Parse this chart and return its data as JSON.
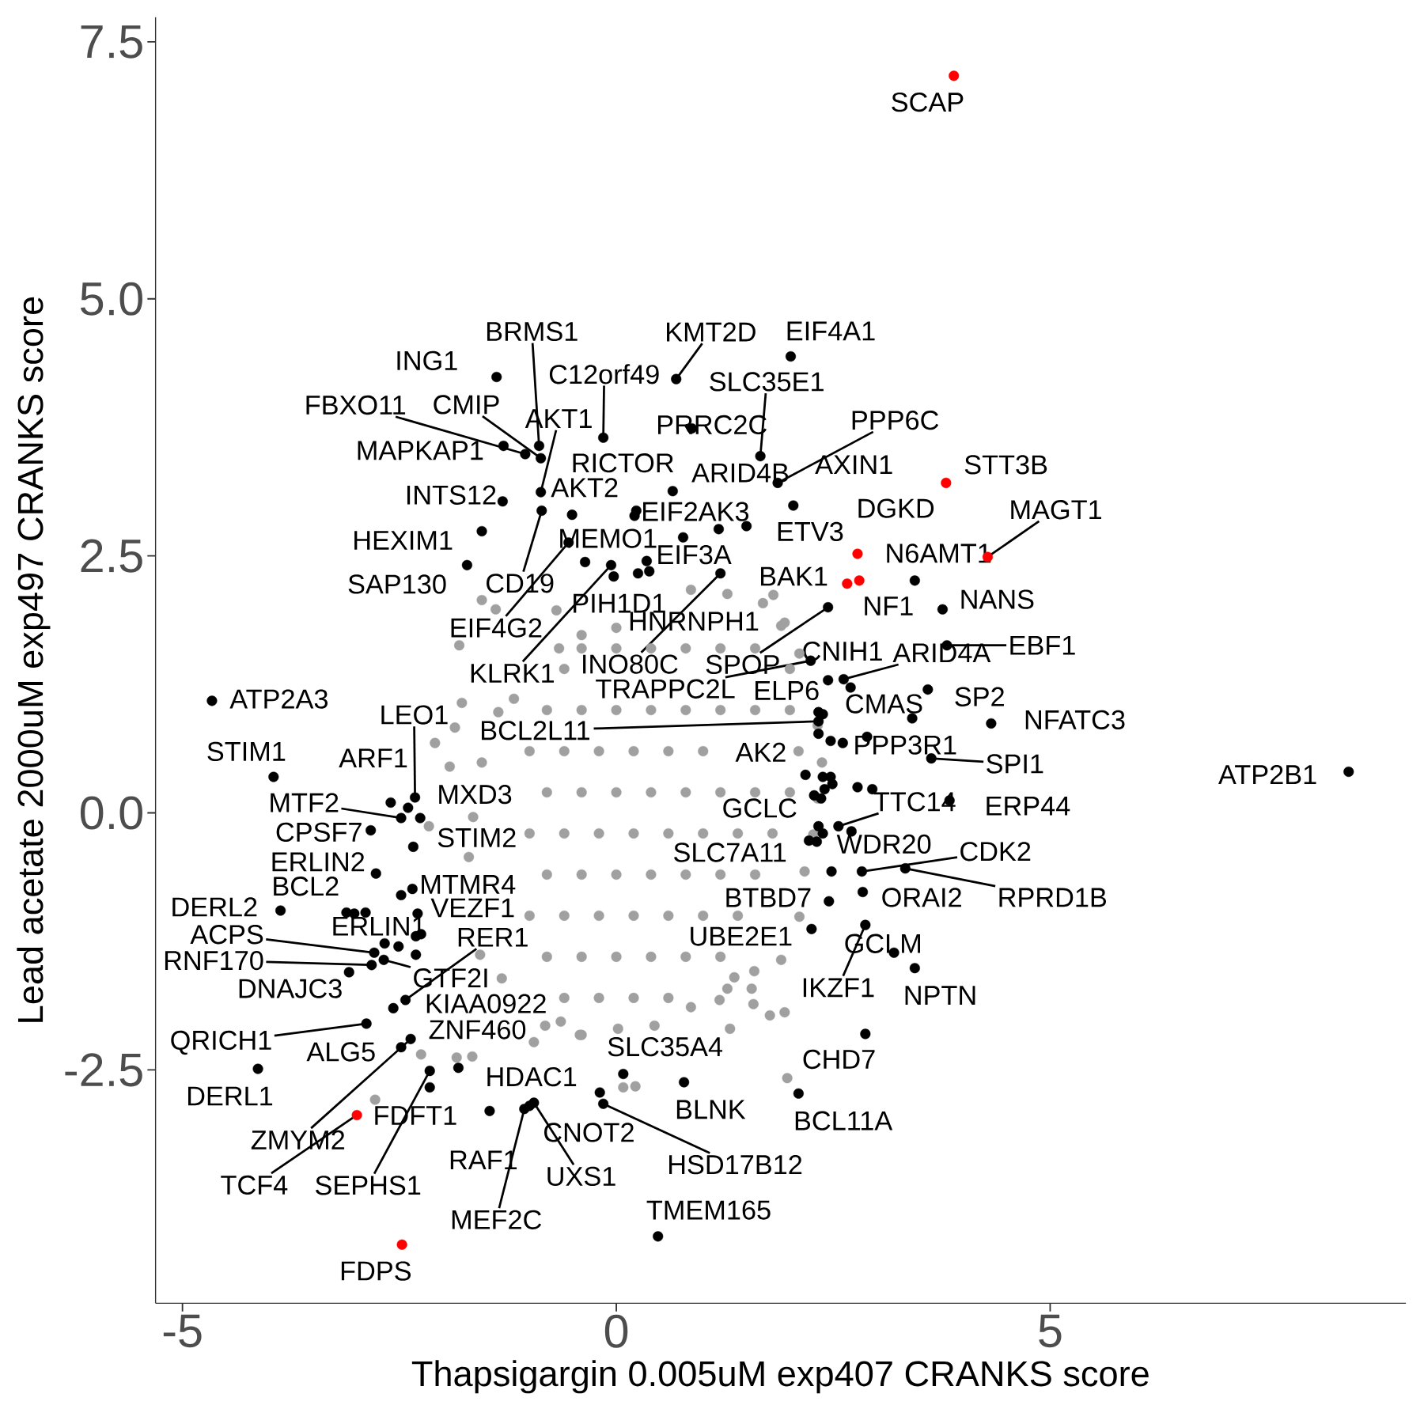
{
  "chart_data": {
    "type": "scatter",
    "xlabel": "Thapsigargin 0.005uM exp407 CRANKS score",
    "ylabel": "Lead acetate 2000uM exp497 CRANKS score",
    "xlim": [
      -5.31,
      9.1
    ],
    "ylim": [
      -4.77,
      7.74
    ],
    "xticks": [
      -5,
      0,
      5
    ],
    "yticks": [
      -2.5,
      {
        "value": 0,
        "label": "0.0"
      },
      2.5,
      {
        "value": 5,
        "label": "5.0"
      },
      7.5
    ],
    "marker": "circle",
    "series": [
      {
        "color": "#a0a0a0",
        "x": [
          -0.4,
          0.86,
          1.28,
          1.69,
          1.9,
          2.11,
          2.32,
          2.37,
          2.32,
          2.27,
          2.17,
          2.11,
          1.9,
          1.59,
          1.28,
          0.86,
          0.44,
          0.02,
          -0.4,
          -0.82,
          -1.32,
          -1.57,
          -1.7,
          -1.65,
          -1.55,
          -1.36,
          -1.18,
          -0.66,
          0,
          -0.4,
          0,
          0.4,
          0.8,
          1.2,
          1.6,
          -0.6,
          2.0,
          -0.8,
          -0.4,
          0,
          0.4,
          0.8,
          1.2,
          1.6,
          2.0,
          -1.0,
          -0.6,
          -0.2,
          0.2,
          0.6,
          1.0,
          2.1,
          -0.8,
          -0.4,
          0,
          0.4,
          0.8,
          1.2,
          1.6,
          2.0,
          -1.0,
          -0.6,
          -0.2,
          0.2,
          0.6,
          1.0,
          1.4,
          1.8,
          -0.8,
          -0.4,
          0,
          0.4,
          0.8,
          1.2,
          1.6,
          -1.0,
          -0.6,
          -0.2,
          0.2,
          0.6,
          1.0,
          1.4,
          -0.8,
          -0.4,
          0,
          0.4,
          0.8,
          1.2,
          -0.6,
          -0.2,
          0.2,
          0.6,
          -1.55,
          -1.81,
          -1.39,
          -0.69,
          1.81,
          1.94,
          1.36,
          1.56,
          1.58,
          1.77,
          1.94,
          1.31,
          1.97,
          0.08,
          0.22,
          1.19,
          -2.25,
          -1.84,
          -1.66,
          -2.78,
          -0.95,
          -0.64,
          -0.42,
          -1.78,
          -1.86,
          -2.09,
          -1.92,
          -2.16
        ],
        "values": [
          1.73,
          2.17,
          2.13,
          2.04,
          1.82,
          1.55,
          0.85,
          0.49,
          0.14,
          -0.21,
          -0.57,
          -1.01,
          -1.43,
          -1.54,
          -1.71,
          -1.89,
          -2.07,
          -2.1,
          -2.16,
          -2.07,
          -1.61,
          -1.38,
          -0.43,
          -0.04,
          0.49,
          0.98,
          1.11,
          1.6,
          1.8,
          1.6,
          1.6,
          1.6,
          1.6,
          1.6,
          1.6,
          1.4,
          1.4,
          1.0,
          1.0,
          1.0,
          1.0,
          1.0,
          1.0,
          1.0,
          1.0,
          0.6,
          0.6,
          0.6,
          0.6,
          0.6,
          0.6,
          0.6,
          0.2,
          0.2,
          0.2,
          0.2,
          0.2,
          0.2,
          0.2,
          0.2,
          -0.2,
          -0.2,
          -0.2,
          -0.2,
          -0.2,
          -0.2,
          -0.2,
          -0.2,
          -0.6,
          -0.6,
          -0.6,
          -0.6,
          -0.6,
          -0.6,
          -0.6,
          -1.0,
          -1.0,
          -1.0,
          -1.0,
          -1.0,
          -1.0,
          -1.0,
          -1.4,
          -1.4,
          -1.4,
          -1.4,
          -1.4,
          -1.4,
          -1.8,
          -1.8,
          -1.8,
          -1.8,
          2.07,
          1.63,
          1.98,
          1.97,
          2.12,
          1.85,
          -1.6,
          -1.71,
          -1.86,
          -1.97,
          -1.94,
          -2.1,
          -2.58,
          -2.67,
          -2.66,
          -1.82,
          -2.35,
          -2.38,
          -2.37,
          -2.79,
          -2.23,
          -2.03,
          -2.16,
          1.07,
          0.83,
          0.68,
          0.45,
          -0.13
        ]
      },
      {
        "color": "#000000",
        "x": [
          2.01,
          0.69,
          -1.38,
          -0.89,
          -0.15,
          1.66,
          -1.05,
          -0.87,
          -1.3,
          -0.87,
          0.87,
          1.86,
          0.65,
          2.04,
          1.5,
          1.18,
          3.44,
          3.76,
          3.81,
          2.62,
          2.44,
          2.24,
          2.44,
          3.41,
          3.59,
          4.32,
          2.38,
          2.33,
          2.89,
          3.63,
          2.18,
          3.84,
          2.56,
          2.28,
          2.71,
          2.22,
          2.83,
          3.33,
          2.84,
          2.45,
          2.25,
          2.87,
          3.2,
          3.44,
          2.87,
          2.1,
          0.78,
          0.08,
          -0.15,
          -0.19,
          0.48,
          8.44,
          0.23,
          0.35,
          0.38,
          0.25,
          -0.06,
          1.2,
          -0.36,
          -0.55,
          -0.86,
          -0.51,
          -1.31,
          -1.55,
          -1.72,
          -4.66,
          -3.95,
          -2.32,
          -2.6,
          -2.48,
          -2.26,
          -2.83,
          -2.77,
          -2.34,
          -2.48,
          -2.35,
          -3.11,
          -3.87,
          -2.31,
          -2.82,
          -2.79,
          -3.08,
          -2.68,
          -2.43,
          -2.57,
          -2.88,
          -2.37,
          -2.48,
          -4.13,
          -2.15,
          -2.15,
          -1.82,
          -1.46,
          -1.06,
          -1.0,
          -0.95,
          0.21,
          0.77,
          -0.03,
          2.7,
          2.33,
          2.33,
          2.47,
          2.61,
          2.38,
          2.47,
          2.4,
          2.49,
          2.36,
          2.78,
          2.95,
          2.33,
          2.38,
          2.31,
          2.48,
          -2.4,
          -2.29,
          -2.25,
          -2.67,
          -2.51,
          -2.31,
          -3.02,
          -2.89
        ],
        "values": [
          4.44,
          4.22,
          4.24,
          3.57,
          3.65,
          3.47,
          3.49,
          3.45,
          3.57,
          3.12,
          3.74,
          3.21,
          3.13,
          2.99,
          2.79,
          2.76,
          2.26,
          1.98,
          1.63,
          1.3,
          1.29,
          1.48,
          2.0,
          0.92,
          1.2,
          0.87,
          0.96,
          0.89,
          0.74,
          0.53,
          0.37,
          0.12,
          -0.13,
          0.17,
          -0.18,
          -0.27,
          -0.57,
          -0.54,
          -0.77,
          -0.86,
          -1.13,
          -1.09,
          -1.36,
          -1.51,
          -2.15,
          -2.73,
          -2.62,
          -2.54,
          -2.83,
          -2.72,
          -4.12,
          0.4,
          2.94,
          2.45,
          2.35,
          2.33,
          2.41,
          2.33,
          2.44,
          2.63,
          2.94,
          2.9,
          3.03,
          2.74,
          2.41,
          1.09,
          0.35,
          0.15,
          0.1,
          -0.05,
          -0.05,
          -0.17,
          -0.59,
          -0.33,
          -0.8,
          -0.74,
          -0.97,
          -0.95,
          -1.2,
          -1.48,
          -1.36,
          -1.55,
          -1.43,
          -1.82,
          -1.9,
          -2.05,
          -2.2,
          -2.28,
          -2.49,
          -2.51,
          -2.67,
          -2.48,
          -2.9,
          -2.88,
          -2.85,
          -2.82,
          2.89,
          2.68,
          2.3,
          1.22,
          0.98,
          0.77,
          0.7,
          0.68,
          0.35,
          0.35,
          0.23,
          0.28,
          0.14,
          0.25,
          0.23,
          -0.13,
          -0.2,
          -0.28,
          -0.57,
          0.05,
          -0.98,
          -1.18,
          -1.27,
          -1.3,
          -1.38,
          -0.98,
          -0.97
        ]
      },
      {
        "color": "#ff0000",
        "x": [
          3.89,
          3.8,
          4.28,
          2.78,
          2.8,
          2.66,
          -2.99,
          -2.47
        ],
        "values": [
          7.17,
          3.21,
          2.49,
          2.52,
          2.26,
          2.23,
          -2.94,
          -4.2
        ]
      }
    ],
    "annotations": [
      {
        "text": "SCAP",
        "x": 3.89,
        "y": 7.17
      },
      {
        "text": "STT3B",
        "x": 3.8,
        "y": 3.21
      },
      {
        "text": "MAGT1",
        "x": 4.28,
        "y": 2.49
      },
      {
        "text": "DGKD",
        "x": 2.78,
        "y": 2.52
      },
      {
        "text": "NF1",
        "x": 2.8,
        "y": 2.26
      },
      {
        "text": "BAK1",
        "x": 2.66,
        "y": 2.23
      },
      {
        "text": "TCF4",
        "x": -2.99,
        "y": -2.94
      },
      {
        "text": "FDPS",
        "x": -2.47,
        "y": -4.2
      },
      {
        "text": "EIF4A1",
        "x": 2.01,
        "y": 4.44
      },
      {
        "text": "KMT2D",
        "x": 0.69,
        "y": 4.22
      },
      {
        "text": "ING1",
        "x": -1.38,
        "y": 4.24
      },
      {
        "text": "BRMS1",
        "x": -0.89,
        "y": 3.57
      },
      {
        "text": "C12orf49",
        "x": -0.15,
        "y": 3.65
      },
      {
        "text": "SLC35E1",
        "x": 1.66,
        "y": 3.47
      },
      {
        "text": "FBXO11",
        "x": -1.05,
        "y": 3.49
      },
      {
        "text": "CMIP",
        "x": -0.87,
        "y": 3.45
      },
      {
        "text": "MAPKAP1",
        "x": -1.3,
        "y": 3.57
      },
      {
        "text": "AKT1",
        "x": -0.87,
        "y": 3.12
      },
      {
        "text": "PRRC2C",
        "x": 0.87,
        "y": 3.74
      },
      {
        "text": "PPP6C",
        "x": 1.86,
        "y": 3.21
      },
      {
        "text": "RICTOR",
        "x": 0.65,
        "y": 3.13
      },
      {
        "text": "AXIN1",
        "x": 2.04,
        "y": 2.99
      },
      {
        "text": "ETV3",
        "x": 1.5,
        "y": 2.79
      },
      {
        "text": "ARID4B",
        "x": 1.18,
        "y": 2.76
      },
      {
        "text": "N6AMT1",
        "x": 3.44,
        "y": 2.26
      },
      {
        "text": "NANS",
        "x": 3.76,
        "y": 1.98
      },
      {
        "text": "EBF1",
        "x": 3.81,
        "y": 1.63
      },
      {
        "text": "ARID4A",
        "x": 2.62,
        "y": 1.3
      },
      {
        "text": "CNIH1",
        "x": 2.44,
        "y": 1.29
      },
      {
        "text": "TRAPPC2L",
        "x": 2.24,
        "y": 1.48
      },
      {
        "text": "SPOP",
        "x": 2.44,
        "y": 2.0
      },
      {
        "text": "CMAS",
        "x": 3.41,
        "y": 0.92
      },
      {
        "text": "SP2",
        "x": 3.59,
        "y": 1.2
      },
      {
        "text": "NFATC3",
        "x": 4.32,
        "y": 0.87
      },
      {
        "text": "ELP6",
        "x": 2.38,
        "y": 0.96
      },
      {
        "text": "BCL2L11",
        "x": 2.33,
        "y": 0.89
      },
      {
        "text": "PPP3R1",
        "x": 2.89,
        "y": 0.74
      },
      {
        "text": "SPI1",
        "x": 3.63,
        "y": 0.53
      },
      {
        "text": "AK2",
        "x": 2.18,
        "y": 0.37
      },
      {
        "text": "ERP44",
        "x": 3.84,
        "y": 0.12
      },
      {
        "text": "TTC14",
        "x": 2.56,
        "y": -0.13
      },
      {
        "text": "GCLC",
        "x": 2.28,
        "y": 0.17
      },
      {
        "text": "WDR20",
        "x": 2.71,
        "y": -0.18
      },
      {
        "text": "SLC7A11",
        "x": 2.22,
        "y": -0.27
      },
      {
        "text": "CDK2",
        "x": 2.83,
        "y": -0.57
      },
      {
        "text": "RPRD1B",
        "x": 3.33,
        "y": -0.54
      },
      {
        "text": "ORAI2",
        "x": 2.84,
        "y": -0.77
      },
      {
        "text": "BTBD7",
        "x": 2.45,
        "y": -0.86
      },
      {
        "text": "UBE2E1",
        "x": 2.25,
        "y": -1.13
      },
      {
        "text": "IKZF1",
        "x": 2.87,
        "y": -1.09
      },
      {
        "text": "GCLM",
        "x": 3.2,
        "y": -1.36
      },
      {
        "text": "NPTN",
        "x": 3.44,
        "y": -1.51
      },
      {
        "text": "CHD7",
        "x": 2.87,
        "y": -2.15
      },
      {
        "text": "BCL11A",
        "x": 2.1,
        "y": -2.73
      },
      {
        "text": "BLNK",
        "x": 0.78,
        "y": -2.62
      },
      {
        "text": "SLC35A4",
        "x": 0.08,
        "y": -2.54
      },
      {
        "text": "HSD17B12",
        "x": -0.15,
        "y": -2.83
      },
      {
        "text": "CNOT2",
        "x": -0.19,
        "y": -2.72
      },
      {
        "text": "TMEM165",
        "x": 0.48,
        "y": -4.12
      },
      {
        "text": "ATP2B1",
        "x": 8.44,
        "y": 0.4
      },
      {
        "text": "EIF2AK3",
        "x": 0.23,
        "y": 2.94
      },
      {
        "text": "EIF3A",
        "x": 0.35,
        "y": 2.45
      },
      {
        "text": "HNRNPH1",
        "x": 0.38,
        "y": 2.35
      },
      {
        "text": "PIH1D1",
        "x": 0.25,
        "y": 2.33
      },
      {
        "text": "KLRK1",
        "x": -0.06,
        "y": 2.41
      },
      {
        "text": "INO80C",
        "x": 1.2,
        "y": 2.33
      },
      {
        "text": "MEMO1",
        "x": -0.36,
        "y": 2.44
      },
      {
        "text": "EIF4G2",
        "x": -0.55,
        "y": 2.63
      },
      {
        "text": "CD19",
        "x": -0.86,
        "y": 2.94
      },
      {
        "text": "AKT2",
        "x": -0.51,
        "y": 2.9
      },
      {
        "text": "INTS12",
        "x": -1.31,
        "y": 3.03
      },
      {
        "text": "HEXIM1",
        "x": -1.55,
        "y": 2.74
      },
      {
        "text": "SAP130",
        "x": -1.72,
        "y": 2.41
      },
      {
        "text": "ATP2A3",
        "x": -4.66,
        "y": 1.09
      },
      {
        "text": "STIM1",
        "x": -3.95,
        "y": 0.35
      },
      {
        "text": "LEO1",
        "x": -2.32,
        "y": 0.15
      },
      {
        "text": "ARF1",
        "x": -2.6,
        "y": 0.1
      },
      {
        "text": "MTF2",
        "x": -2.48,
        "y": -0.05
      },
      {
        "text": "MXD3",
        "x": -2.26,
        "y": -0.05
      },
      {
        "text": "CPSF7",
        "x": -2.83,
        "y": -0.17
      },
      {
        "text": "ERLIN2",
        "x": -2.77,
        "y": -0.59
      },
      {
        "text": "STIM2",
        "x": -2.34,
        "y": -0.33
      },
      {
        "text": "VEZF1",
        "x": -2.48,
        "y": -0.8
      },
      {
        "text": "MTMR4",
        "x": -2.35,
        "y": -0.74
      },
      {
        "text": "BCL2",
        "x": -3.11,
        "y": -0.97
      },
      {
        "text": "DERL2",
        "x": -3.87,
        "y": -0.95
      },
      {
        "text": "ERLIN1",
        "x": -2.31,
        "y": -1.2
      },
      {
        "text": "RNF170",
        "x": -2.82,
        "y": -1.48
      },
      {
        "text": "ACPS",
        "x": -2.79,
        "y": -1.36
      },
      {
        "text": "DNAJC3",
        "x": -3.08,
        "y": -1.55
      },
      {
        "text": "KIAA0922",
        "x": -2.57,
        "y": -1.9
      },
      {
        "text": "RER1",
        "x": -2.43,
        "y": -1.82
      },
      {
        "text": "GTF2I",
        "x": -2.68,
        "y": -1.43
      },
      {
        "text": "QRICH1",
        "x": -2.88,
        "y": -2.05
      },
      {
        "text": "ZMYM2",
        "x": -2.37,
        "y": -2.2
      },
      {
        "text": "ALG5",
        "x": -2.48,
        "y": -2.28
      },
      {
        "text": "DERL1",
        "x": -4.13,
        "y": -2.49
      },
      {
        "text": "SEPHS1",
        "x": -2.15,
        "y": -2.51
      },
      {
        "text": "FDFT1",
        "x": -2.15,
        "y": -2.67
      },
      {
        "text": "ZNF460",
        "x": -1.82,
        "y": -2.48
      },
      {
        "text": "RAF1",
        "x": -1.46,
        "y": -2.9
      },
      {
        "text": "MEF2C",
        "x": -1.06,
        "y": -2.88
      },
      {
        "text": "HDAC1",
        "x": -1.0,
        "y": -2.85
      },
      {
        "text": "UXS1",
        "x": -0.95,
        "y": -2.82
      }
    ]
  }
}
